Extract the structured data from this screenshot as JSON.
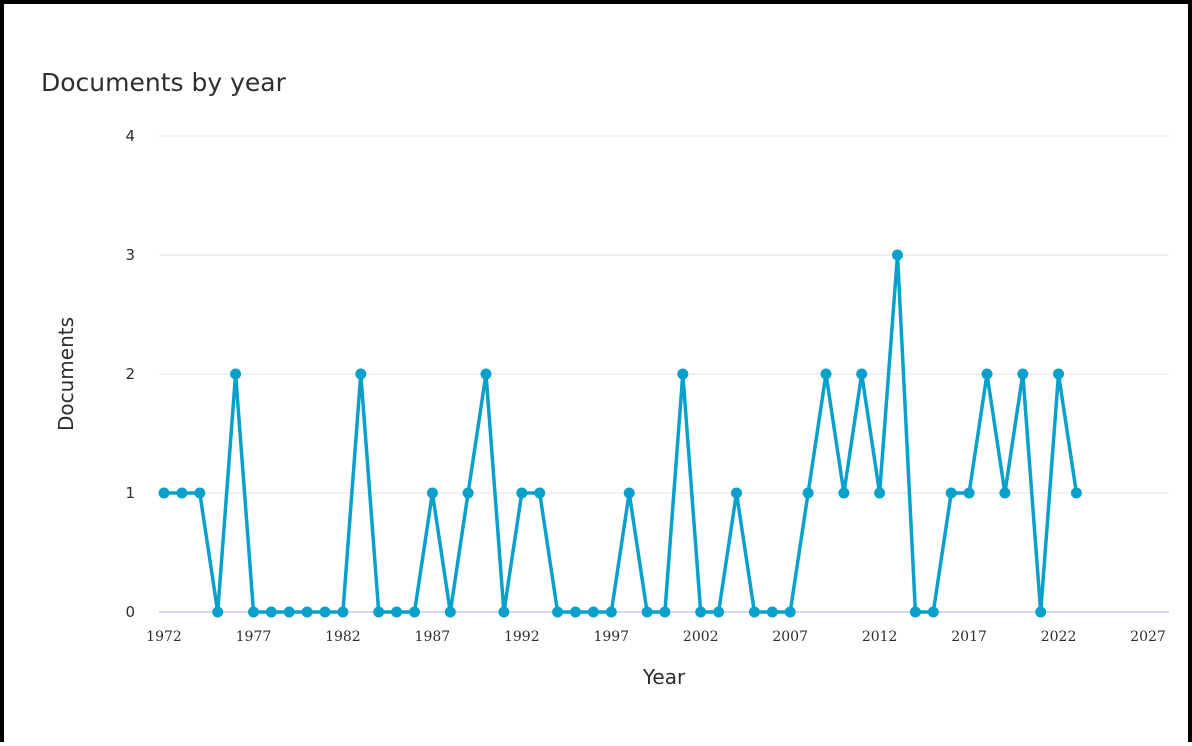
{
  "chart_data": {
    "type": "line",
    "title": "Documents by year",
    "xlabel": "Year",
    "ylabel": "Documents",
    "ylim": [
      0,
      4
    ],
    "xlim": [
      1972,
      2027
    ],
    "yticks": [
      "0",
      "1",
      "2",
      "3",
      "4"
    ],
    "xticks": [
      "1972",
      "1977",
      "1982",
      "1987",
      "1992",
      "1997",
      "2002",
      "2007",
      "2012",
      "2017",
      "2022",
      "2027"
    ],
    "grid": true,
    "series_color": "#0aa0cc",
    "x": [
      1972,
      1973,
      1974,
      1975,
      1976,
      1977,
      1978,
      1979,
      1980,
      1981,
      1982,
      1983,
      1984,
      1985,
      1986,
      1987,
      1988,
      1989,
      1990,
      1991,
      1992,
      1993,
      1994,
      1995,
      1996,
      1997,
      1998,
      1999,
      2000,
      2001,
      2002,
      2003,
      2004,
      2005,
      2006,
      2007,
      2008,
      2009,
      2010,
      2011,
      2012,
      2013,
      2014,
      2015,
      2016,
      2017,
      2018,
      2019,
      2020,
      2021,
      2022,
      2023
    ],
    "values": [
      1,
      1,
      1,
      0,
      2,
      0,
      0,
      0,
      0,
      0,
      0,
      2,
      0,
      0,
      0,
      1,
      0,
      1,
      2,
      0,
      1,
      1,
      0,
      0,
      0,
      0,
      1,
      0,
      0,
      2,
      0,
      0,
      1,
      0,
      0,
      0,
      1,
      2,
      1,
      2,
      1,
      3,
      0,
      0,
      1,
      1,
      2,
      1,
      2,
      0,
      2,
      1
    ]
  }
}
